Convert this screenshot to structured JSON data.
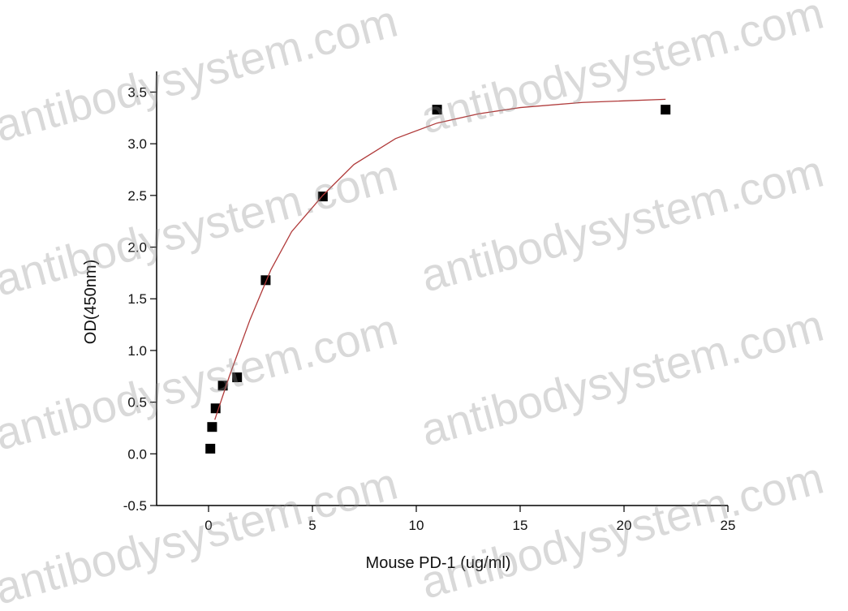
{
  "chart_data": {
    "type": "scatter",
    "x_label": "Mouse PD-1 (ug/ml)",
    "y_label": "OD(450nm)",
    "watermark": "antibodysystem.com",
    "xlim": [
      -2.5,
      25
    ],
    "ylim": [
      -0.5,
      3.7
    ],
    "xticks": [
      0,
      5,
      10,
      15,
      20,
      25
    ],
    "yticks": [
      -0.5,
      {
        "value": 0,
        "label": "0.0"
      },
      0.5,
      {
        "value": 1,
        "label": "1.0"
      },
      1.5,
      {
        "value": 2,
        "label": "2.0"
      },
      2.5,
      {
        "value": 3,
        "label": "3.0"
      },
      3.5
    ],
    "series": [
      {
        "color": "#000000",
        "x": [
          0.086,
          0.172,
          0.34,
          0.6875,
          1.375,
          2.75,
          5.5,
          11,
          22
        ],
        "values": [
          0.05,
          0.26,
          0.44,
          0.66,
          0.74,
          1.68,
          2.49,
          3.33,
          3.33
        ]
      },
      {
        "type": "line",
        "color": "#b03a3a",
        "x": [
          0.3,
          1,
          2,
          3,
          4,
          5.5,
          7,
          9,
          11,
          13,
          15,
          18,
          22
        ],
        "values": [
          0.33,
          0.75,
          1.3,
          1.78,
          2.15,
          2.5,
          2.8,
          3.05,
          3.2,
          3.29,
          3.35,
          3.4,
          3.43
        ]
      }
    ]
  }
}
